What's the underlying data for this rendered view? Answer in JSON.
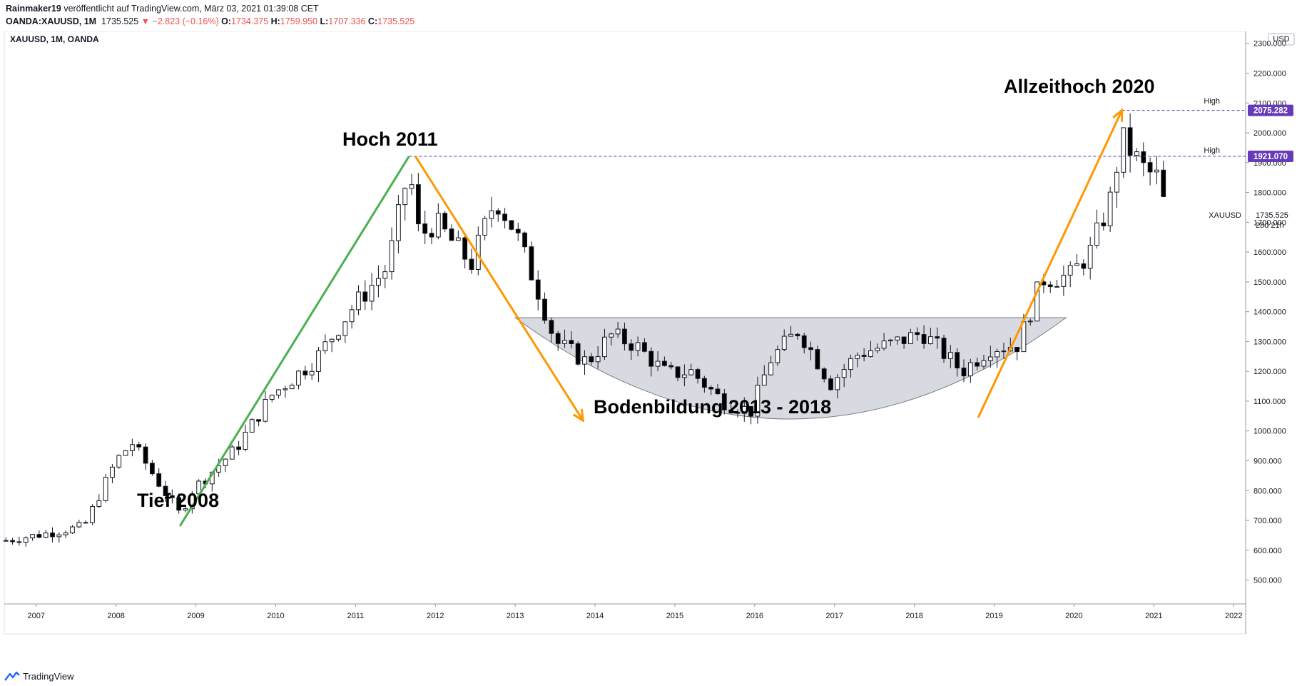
{
  "header": {
    "author": "Rainmaker19",
    "published": "veröffentlicht auf TradingView.com, März 03, 2021 01:39:08 CET",
    "symbol": "OANDA:XAUUSD, 1M",
    "price": "1735.525",
    "change": "−2.823 (−0.16%)",
    "o_label": "O:",
    "o_value": "1734.375",
    "h_label": "H:",
    "h_value": "1759.950",
    "l_label": "L:",
    "l_value": "1707.336",
    "c_label": "C:",
    "c_value": "1735.525"
  },
  "chart_title": "XAUUSD, 1M, OANDA",
  "currency": "USD",
  "annotations": {
    "hoch2011": "Hoch 2011",
    "tief2008": "Tief 2008",
    "boden": "Bodenbildung 2013 - 2018",
    "allzeithoch": "Allzeithoch 2020"
  },
  "price_labels": {
    "high_tag": "High",
    "high1": "2075.282",
    "high2": "1921.070",
    "symbol_label": "XAUUSD",
    "last": "1735.525",
    "countdown": "28d 21h"
  },
  "footer": {
    "brand": "TradingView"
  },
  "colors": {
    "up": "#ffffff",
    "down": "#000000",
    "wick": "#131722",
    "green_line": "#4caf50",
    "orange_line": "#ff9800",
    "badge": "#673ab7",
    "bowl": "#d1d4dc",
    "dash": "#5b3fa8"
  },
  "chart_data": {
    "type": "candlestick",
    "interval": "1M",
    "ylim": [
      420,
      2340
    ],
    "y_ticks": [
      500,
      600,
      700,
      800,
      900,
      1000,
      1100,
      1200,
      1300,
      1400,
      1500,
      1600,
      1700,
      1800,
      1900,
      2000,
      2100,
      2200,
      2300
    ],
    "x_ticks": [
      "2007",
      "2008",
      "2009",
      "2010",
      "2011",
      "2012",
      "2013",
      "2014",
      "2015",
      "2016",
      "2017",
      "2018",
      "2019",
      "2020",
      "2021",
      "2022"
    ],
    "x_start_year": 2006.6,
    "x_end_year": 2022.15,
    "annual_closes": {
      "2006": 632,
      "2007": 834,
      "2008": 880,
      "2009": 1097,
      "2010": 1421,
      "2011": 1565,
      "2012": 1675,
      "2013": 1202,
      "2014": 1184,
      "2015": 1062,
      "2016": 1146,
      "2017": 1303,
      "2018": 1282,
      "2019": 1518,
      "2020": 1898,
      "2021": 1735
    },
    "key_points": [
      {
        "label": "Tief 2008",
        "date": "2008-10",
        "price": 681
      },
      {
        "label": "Hoch 2011",
        "date": "2011-09",
        "price": 1921.07
      },
      {
        "label": "Bodenbildung 2013 - 2018",
        "date": "2015-12",
        "price": 1046
      },
      {
        "label": "Allzeithoch 2020",
        "date": "2020-08",
        "price": 2075.282
      }
    ],
    "last": 1735.525
  }
}
